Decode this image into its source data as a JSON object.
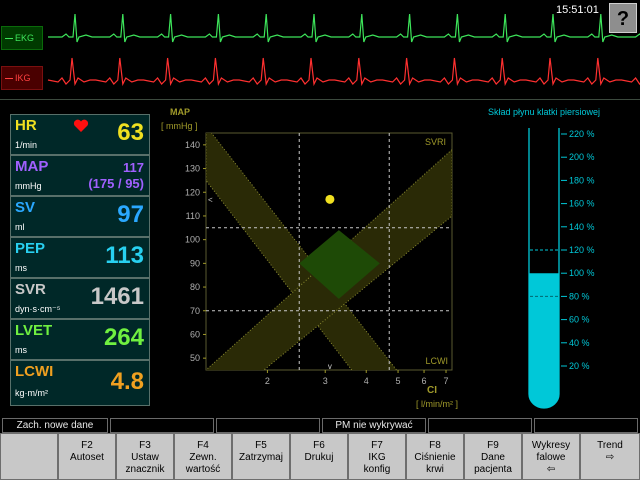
{
  "header": {
    "clock": "15:51:01",
    "help_label": "?"
  },
  "waveforms": {
    "ekg": {
      "label": "EKG",
      "color": "#3de45a"
    },
    "ikg": {
      "label": "IKG",
      "color": "#ff3030"
    }
  },
  "params": [
    {
      "name": "HR",
      "unit": "1/min",
      "value": "63",
      "color": "#f0e020",
      "heart": "heart-icon"
    },
    {
      "name": "MAP",
      "unit": "mmHg",
      "value": "117",
      "value2": "(175 / 95)",
      "color": "#a060ff"
    },
    {
      "name": "SV",
      "unit": "ml",
      "value": "97",
      "color": "#2aa8ff"
    },
    {
      "name": "PEP",
      "unit": "ms",
      "value": "113",
      "color": "#28d0f0"
    },
    {
      "name": "SVR",
      "unit": "dyn·s·cm⁻⁵",
      "value": "1461",
      "color": "#c8c8c8"
    },
    {
      "name": "LVET",
      "unit": "ms",
      "value": "264",
      "color": "#70f040"
    },
    {
      "name": "LCWI",
      "unit": "kg·m/m²",
      "value": "4.8",
      "color": "#f0a020"
    }
  ],
  "chart_data": {
    "type": "scatter",
    "ylabel": "MAP",
    "yunit": "[ mmHg ]",
    "xlabel": "CI",
    "xunit": "[ l/min/m² ]",
    "yticks": [
      50,
      60,
      70,
      80,
      90,
      100,
      110,
      120,
      130,
      140
    ],
    "xticks": [
      2,
      3,
      4,
      5,
      6,
      7
    ],
    "ylim": [
      45,
      145
    ],
    "xlim": [
      1.3,
      7.3
    ],
    "x_scale": "log",
    "ref_lines": {
      "x": [
        2.5,
        4.7
      ],
      "y": [
        70,
        105
      ]
    },
    "band_labels": [
      "SVRI",
      "LCWI"
    ],
    "point": {
      "x": 3.1,
      "y": 117
    },
    "y_marker": 117,
    "x_marker": 3.1
  },
  "fluid": {
    "title": "Skład płynu klatki piersiowej",
    "ticks": [
      "220 %",
      "200 %",
      "180 %",
      "160 %",
      "140 %",
      "120 %",
      "100 %",
      "80 %",
      "60 %",
      "40 %",
      "20 %"
    ],
    "level_percent": 100,
    "dashed_ticks": [
      "120 %",
      "80 %"
    ],
    "color": "#00c8d8"
  },
  "status_bar": [
    "Zach. nowe dane",
    "",
    "",
    "PM nie wykrywać",
    "",
    "",
    ""
  ],
  "function_keys": [
    {
      "l1": "",
      "l2": "",
      "l3": ""
    },
    {
      "l1": "F2",
      "l2": "Autoset",
      "l3": ""
    },
    {
      "l1": "F3",
      "l2": "Ustaw",
      "l3": "znacznik"
    },
    {
      "l1": "F4",
      "l2": "Zewn.",
      "l3": "wartość"
    },
    {
      "l1": "F5",
      "l2": "Zatrzymaj",
      "l3": ""
    },
    {
      "l1": "F6",
      "l2": "Drukuj",
      "l3": ""
    },
    {
      "l1": "F7",
      "l2": "IKG",
      "l3": "konfig"
    },
    {
      "l1": "F8",
      "l2": "Ciśnienie",
      "l3": "krwi"
    },
    {
      "l1": "F9",
      "l2": "Dane",
      "l3": "pacjenta"
    },
    {
      "l1": "Wykresy",
      "l2": "falowe",
      "l3": "⇦"
    },
    {
      "l1": "Trend",
      "l2": "⇨",
      "l3": ""
    }
  ]
}
